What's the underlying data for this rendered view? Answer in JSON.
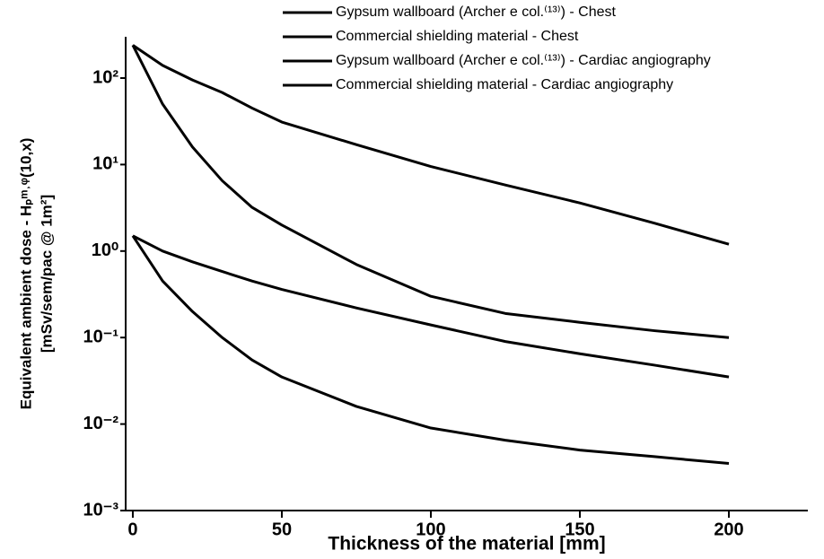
{
  "chart_data": {
    "type": "line",
    "xlabel": "Thickness of the material [mm]",
    "ylabel": [
      "Equivalent ambient dose - Hₚᵐ˒ᵠ(10,x)",
      "[mSv/sem/pac @ 1m²]"
    ],
    "log_y": true,
    "x": [
      0,
      10,
      20,
      30,
      40,
      50,
      75,
      100,
      125,
      150,
      175,
      200
    ],
    "series": [
      {
        "name": "Gypsum wallboard (Archer e col.⁽¹³⁾) - Chest",
        "color": "#000000",
        "values": [
          240,
          140,
          95,
          68,
          45,
          31,
          17,
          9.5,
          5.8,
          3.6,
          2.1,
          1.2
        ]
      },
      {
        "name": "Commercial shielding material - Chest",
        "color": "#000000",
        "values": [
          240,
          50,
          16,
          6.5,
          3.2,
          2.0,
          0.7,
          0.3,
          0.19,
          0.15,
          0.12,
          0.1
        ]
      },
      {
        "name": "Gypsum wallboard (Archer e col.⁽¹³⁾) - Cardiac angiography",
        "color": "#000000",
        "values": [
          1.5,
          1.0,
          0.75,
          0.58,
          0.45,
          0.36,
          0.22,
          0.14,
          0.09,
          0.065,
          0.048,
          0.035
        ]
      },
      {
        "name": "Commercial shielding material - Cardiac angiography",
        "color": "#000000",
        "values": [
          1.5,
          0.45,
          0.2,
          0.1,
          0.055,
          0.035,
          0.016,
          0.009,
          0.0065,
          0.005,
          0.0042,
          0.0035
        ]
      }
    ],
    "xlim": [
      -2.4,
      226.5
    ],
    "xticks": [
      0,
      50,
      100,
      150,
      200
    ],
    "ylim": [
      0.001,
      300
    ],
    "yticks": [
      {
        "value": 0.001,
        "label": "10⁻³"
      },
      {
        "value": 0.01,
        "label": "10⁻²"
      },
      {
        "value": 0.1,
        "label": "10⁻¹"
      },
      {
        "value": 1,
        "label": "10⁰"
      },
      {
        "value": 10,
        "label": "10¹"
      },
      {
        "value": 100,
        "label": "10²"
      }
    ],
    "legend": "top-right",
    "grid": false
  }
}
